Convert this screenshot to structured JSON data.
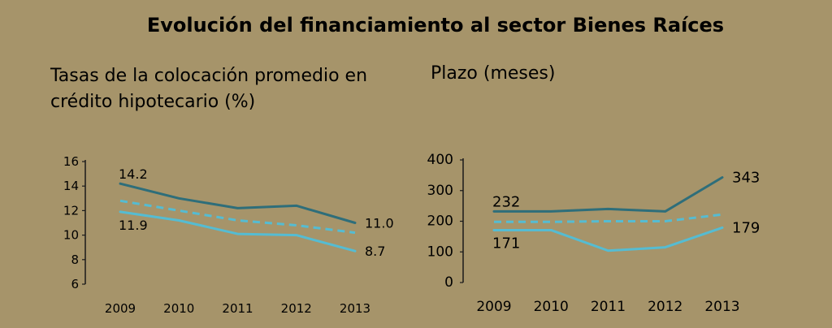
{
  "title": "Evolución del financiamiento al sector Bienes Raíces",
  "colors": {
    "dark": "#2e6e7a",
    "light": "#55bcd2",
    "dashed": "#55bcd2",
    "axis": "#1a1a1a"
  },
  "chart_data": [
    {
      "type": "line",
      "title": "Tasas de la colocación promedio en crédito hipotecario (%)",
      "title_lines": [
        "Tasas de la colocación promedio en",
        "crédito hipotecario (%)"
      ],
      "categories": [
        "2009",
        "2010",
        "2011",
        "2012",
        "2013"
      ],
      "ylim": [
        6,
        16
      ],
      "yticks": [
        6,
        8,
        10,
        12,
        14,
        16
      ],
      "grid": false,
      "legend": "none",
      "series": [
        {
          "style": "dark",
          "values": [
            14.2,
            13.0,
            12.2,
            12.4,
            11.0
          ]
        },
        {
          "style": "dashed",
          "values": [
            12.8,
            12.0,
            11.2,
            10.8,
            10.2
          ]
        },
        {
          "style": "light",
          "values": [
            11.9,
            11.2,
            10.1,
            10.0,
            8.7
          ]
        }
      ],
      "labels": [
        {
          "text": "14.2",
          "series": 0,
          "index": 0,
          "pos": "above"
        },
        {
          "text": "11.9",
          "series": 2,
          "index": 0,
          "pos": "below"
        },
        {
          "text": "11.0",
          "series": 0,
          "index": 4,
          "pos": "right"
        },
        {
          "text": "8.7",
          "series": 2,
          "index": 4,
          "pos": "right"
        }
      ]
    },
    {
      "type": "line",
      "title": "Plazo (meses)",
      "title_lines": [
        "Plazo (meses)"
      ],
      "categories": [
        "2009",
        "2010",
        "2011",
        "2012",
        "2013"
      ],
      "ylim": [
        0,
        400
      ],
      "yticks": [
        0,
        100,
        200,
        300,
        400
      ],
      "grid": false,
      "legend": "none",
      "series": [
        {
          "style": "dark",
          "values": [
            232,
            232,
            240,
            232,
            343
          ]
        },
        {
          "style": "dashed",
          "values": [
            198,
            198,
            200,
            200,
            222
          ]
        },
        {
          "style": "light",
          "values": [
            171,
            171,
            104,
            115,
            179
          ]
        }
      ],
      "labels": [
        {
          "text": "232",
          "series": 0,
          "index": 0,
          "pos": "above"
        },
        {
          "text": "171",
          "series": 2,
          "index": 0,
          "pos": "below"
        },
        {
          "text": "343",
          "series": 0,
          "index": 4,
          "pos": "right"
        },
        {
          "text": "179",
          "series": 2,
          "index": 4,
          "pos": "right"
        }
      ]
    }
  ]
}
